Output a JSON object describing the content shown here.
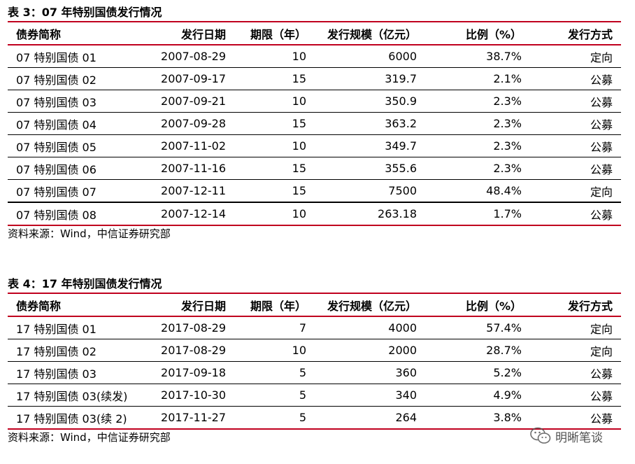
{
  "table3": {
    "caption": "表 3：07 年特别国债发行情况",
    "headers": [
      "债券简称",
      "发行日期",
      "期限（年）",
      "发行规模（亿元）",
      "比例（%）",
      "发行方式"
    ],
    "rows": [
      [
        "07 特别国债 01",
        "2007-08-29",
        "10",
        "6000",
        "38.7%",
        "定向"
      ],
      [
        "07 特别国债 02",
        "2007-09-17",
        "15",
        "319.7",
        "2.1%",
        "公募"
      ],
      [
        "07 特别国债 03",
        "2007-09-21",
        "10",
        "350.9",
        "2.3%",
        "公募"
      ],
      [
        "07 特别国债 04",
        "2007-09-28",
        "15",
        "363.2",
        "2.3%",
        "公募"
      ],
      [
        "07 特别国债 05",
        "2007-11-02",
        "10",
        "349.7",
        "2.3%",
        "公募"
      ],
      [
        "07 特别国债 06",
        "2007-11-16",
        "15",
        "355.6",
        "2.3%",
        "公募"
      ],
      [
        "07 特别国债 07",
        "2007-12-11",
        "15",
        "7500",
        "48.4%",
        "定向"
      ],
      [
        "07 特别国债 08",
        "2007-12-14",
        "10",
        "263.18",
        "1.7%",
        "公募"
      ]
    ],
    "source": "资料来源：Wind，中信证券研究部"
  },
  "table4": {
    "caption": "表 4：17 年特别国债发行情况",
    "headers": [
      "债券简称",
      "发行日期",
      "期限（年）",
      "发行规模（亿元）",
      "比例（%）",
      "发行方式"
    ],
    "rows": [
      [
        "17 特别国债 01",
        "2017-08-29",
        "7",
        "4000",
        "57.4%",
        "定向"
      ],
      [
        "17 特别国债 02",
        "2017-08-29",
        "10",
        "2000",
        "28.7%",
        "定向"
      ],
      [
        "17 特别国债 03",
        "2017-09-18",
        "5",
        "360",
        "5.2%",
        "公募"
      ],
      [
        "17 特别国债 03(续发)",
        "2017-10-30",
        "5",
        "340",
        "4.9%",
        "公募"
      ],
      [
        "17 特别国债 03(续 2)",
        "2017-11-27",
        "5",
        "264",
        "3.8%",
        "公募"
      ]
    ],
    "source": "资料来源：Wind，中信证券研究部"
  },
  "watermark": {
    "text": "明晰笔谈",
    "icon": "wechat-icon"
  }
}
